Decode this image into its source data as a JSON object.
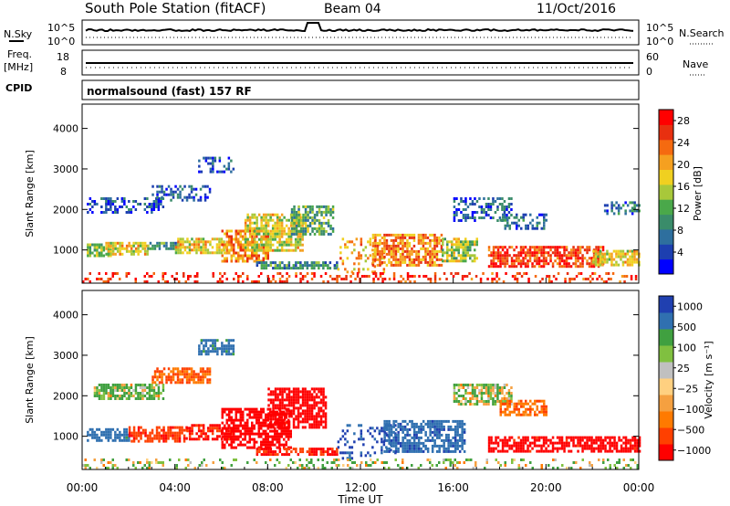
{
  "header": {
    "station": "South Pole Station (fitACF)",
    "beam": "Beam 04",
    "date": "11/Oct/2016"
  },
  "strips": {
    "nsky": {
      "label": "N.Sky",
      "left_top": "10^5",
      "left_bottom": "10^0",
      "right_top": "10^5",
      "right_bottom": "10^0",
      "right_label": "N.Search"
    },
    "freq": {
      "label": "Freq.",
      "unit": "[MHz]",
      "left_top": "18",
      "left_bottom": "8",
      "right_top": "60",
      "right_bottom": "0",
      "right_label": "Nave"
    },
    "cpid": {
      "label": "CPID",
      "text": "normalsound (fast) 157 RF"
    }
  },
  "colors": {
    "power": [
      "#0000ff",
      "#1d3fb0",
      "#2e6f9e",
      "#3a8c6a",
      "#4aa84a",
      "#a8c83a",
      "#f0d020",
      "#f5a020",
      "#f56a10",
      "#e83010",
      "#ff0000"
    ],
    "velocity": [
      "#ff0000",
      "#ff4000",
      "#ff7a00",
      "#f5a040",
      "#ffd080",
      "#c0c0c0",
      "#80c040",
      "#40a040",
      "#3070b0",
      "#2040b0"
    ]
  },
  "chart_data": [
    {
      "type": "heatmap",
      "title": "",
      "quantity": "power",
      "xlabel": "",
      "ylabel": "Slant Range [km]",
      "x_ticks": [
        "00:00",
        "04:00",
        "08:00",
        "12:00",
        "16:00",
        "20:00",
        "00:00"
      ],
      "x_range_hours": [
        0,
        24
      ],
      "y_ticks": [
        1000,
        2000,
        3000,
        4000
      ],
      "ylim": [
        180,
        4600
      ],
      "colorbar": {
        "label": "Power [dB]",
        "ticks": [
          "4",
          "8",
          "12",
          "16",
          "20",
          "24",
          "28"
        ],
        "range": [
          0,
          30
        ]
      },
      "regions": [
        {
          "t": [
            0.2,
            1.2
          ],
          "r": [
            880,
            1160
          ],
          "v": 14
        },
        {
          "t": [
            1.0,
            2.8
          ],
          "r": [
            900,
            1200
          ],
          "v": 18
        },
        {
          "t": [
            2.8,
            4.2
          ],
          "r": [
            1000,
            1200
          ],
          "v": 10
        },
        {
          "t": [
            4.0,
            6.2
          ],
          "r": [
            900,
            1300
          ],
          "v": 18
        },
        {
          "t": [
            6.0,
            8.0
          ],
          "r": [
            700,
            1500
          ],
          "v": 22
        },
        {
          "t": [
            7.0,
            9.5
          ],
          "r": [
            1000,
            1900
          ],
          "v": 17
        },
        {
          "t": [
            9.0,
            10.8
          ],
          "r": [
            1400,
            2100
          ],
          "v": 12
        },
        {
          "t": [
            7.5,
            11.0
          ],
          "r": [
            560,
            720
          ],
          "v": 9
        },
        {
          "t": [
            11.0,
            13.0
          ],
          "r": [
            450,
            1300
          ],
          "v": 20
        },
        {
          "t": [
            12.5,
            15.5
          ],
          "r": [
            650,
            1400
          ],
          "v": 22
        },
        {
          "t": [
            15.5,
            17.0
          ],
          "r": [
            700,
            1300
          ],
          "v": 15
        },
        {
          "t": [
            17.5,
            22.5
          ],
          "r": [
            600,
            1100
          ],
          "v": 26
        },
        {
          "t": [
            22.0,
            24.0
          ],
          "r": [
            600,
            1000
          ],
          "v": 18
        },
        {
          "t": [
            0.0,
            8.0
          ],
          "r": [
            200,
            450
          ],
          "v": 27
        },
        {
          "t": [
            8.0,
            24.0
          ],
          "r": [
            200,
            450
          ],
          "v": 26
        },
        {
          "t": [
            0.2,
            3.5
          ],
          "r": [
            1950,
            2300
          ],
          "v": 5
        },
        {
          "t": [
            3.0,
            5.5
          ],
          "r": [
            2200,
            2600
          ],
          "v": 6
        },
        {
          "t": [
            5.0,
            6.5
          ],
          "r": [
            2900,
            3300
          ],
          "v": 6
        },
        {
          "t": [
            16.0,
            18.5
          ],
          "r": [
            1700,
            2300
          ],
          "v": 6
        },
        {
          "t": [
            18.0,
            20.0
          ],
          "r": [
            1500,
            1900
          ],
          "v": 7
        },
        {
          "t": [
            22.5,
            24.0
          ],
          "r": [
            1900,
            2200
          ],
          "v": 7
        }
      ]
    },
    {
      "type": "heatmap",
      "title": "",
      "quantity": "velocity",
      "xlabel": "Time UT",
      "ylabel": "Slant Range [km]",
      "x_ticks": [
        "00:00",
        "04:00",
        "08:00",
        "12:00",
        "16:00",
        "20:00",
        "00:00"
      ],
      "x_range_hours": [
        0,
        24
      ],
      "y_ticks": [
        1000,
        2000,
        3000,
        4000
      ],
      "ylim": [
        180,
        4600
      ],
      "colorbar": {
        "label": "Velocity [m s⁻¹]",
        "ticks": [
          "1000",
          "500",
          "100",
          "25",
          "−25",
          "−100",
          "−500",
          "−1000"
        ],
        "range": [
          -1000,
          1000
        ]
      },
      "regions": [
        {
          "t": [
            0.2,
            2.0
          ],
          "r": [
            880,
            1200
          ],
          "v": 120
        },
        {
          "t": [
            2.0,
            4.5
          ],
          "r": [
            900,
            1250
          ],
          "v": -200
        },
        {
          "t": [
            4.5,
            6.5
          ],
          "r": [
            900,
            1300
          ],
          "v": -300
        },
        {
          "t": [
            6.0,
            9.0
          ],
          "r": [
            700,
            1700
          ],
          "v": -450
        },
        {
          "t": [
            8.0,
            10.5
          ],
          "r": [
            1200,
            2200
          ],
          "v": -550
        },
        {
          "t": [
            7.5,
            11.0
          ],
          "r": [
            560,
            720
          ],
          "v": -250
        },
        {
          "t": [
            11.0,
            13.5
          ],
          "r": [
            450,
            1300
          ],
          "v": 300
        },
        {
          "t": [
            13.0,
            16.5
          ],
          "r": [
            650,
            1400
          ],
          "v": 200
        },
        {
          "t": [
            17.5,
            24.0
          ],
          "r": [
            600,
            1000
          ],
          "v": -400
        },
        {
          "t": [
            0.0,
            24.0
          ],
          "r": [
            200,
            450
          ],
          "v": 10
        },
        {
          "t": [
            0.5,
            3.5
          ],
          "r": [
            1950,
            2300
          ],
          "v": 20
        },
        {
          "t": [
            3.0,
            5.5
          ],
          "r": [
            2300,
            2700
          ],
          "v": -60
        },
        {
          "t": [
            5.0,
            6.5
          ],
          "r": [
            3000,
            3400
          ],
          "v": 100
        },
        {
          "t": [
            16.0,
            18.5
          ],
          "r": [
            1800,
            2300
          ],
          "v": 10
        },
        {
          "t": [
            18.0,
            20.0
          ],
          "r": [
            1500,
            1900
          ],
          "v": -60
        }
      ]
    }
  ]
}
